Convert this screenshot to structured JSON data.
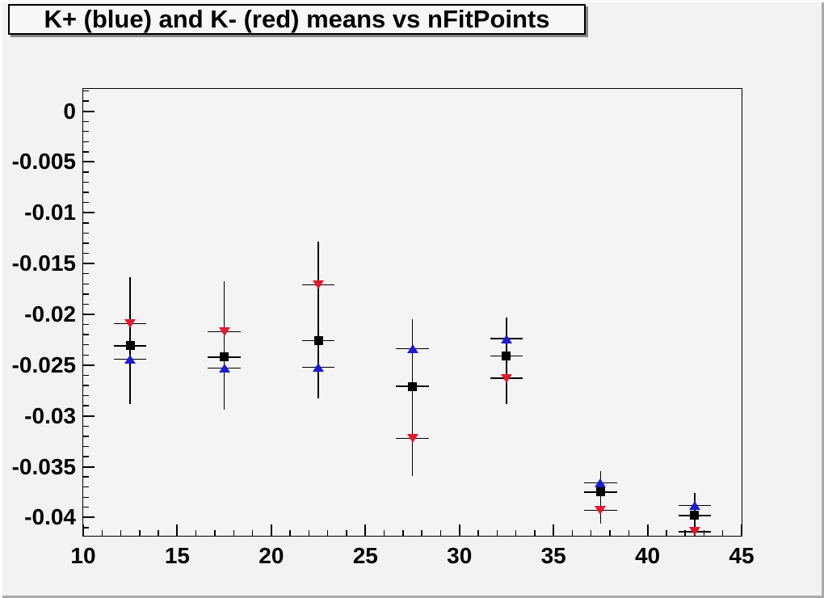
{
  "title": "K+ (blue) and K- (red) means vs nFitPoints",
  "colors": {
    "canvas_bg": "#f2f2f2",
    "frame_bg": "#f4f4f4",
    "kplus_blue": "#1c1cd0",
    "kminus_red": "#e01b2f",
    "mean_black": "#000000"
  },
  "chart_data": {
    "type": "scatter",
    "title": "K+ (blue) and K- (red) means vs nFitPoints",
    "xlabel": "",
    "ylabel": "",
    "xlim": [
      10,
      45
    ],
    "ylim": [
      -0.0418,
      0.0022
    ],
    "grid": false,
    "x_major_ticks": [
      10,
      15,
      20,
      25,
      30,
      35,
      40,
      45
    ],
    "x_tick_labels": [
      "10",
      "15",
      "20",
      "25",
      "30",
      "35",
      "40",
      "45"
    ],
    "x_minor_step": 1,
    "y_major_ticks": [
      0,
      -0.005,
      -0.01,
      -0.015,
      -0.02,
      -0.025,
      -0.03,
      -0.035,
      -0.04
    ],
    "y_tick_labels": [
      "0",
      "-0.005",
      "-0.01",
      "-0.015",
      "-0.02",
      "-0.025",
      "-0.03",
      "-0.035",
      "-0.04"
    ],
    "y_minor_step": 0.001,
    "x": [
      12.5,
      17.5,
      22.5,
      27.5,
      32.5,
      37.5,
      42.5
    ],
    "xerr": 0.87,
    "series": [
      {
        "name": "K+ mean (blue up-triangles)",
        "color": "#1c1cd0",
        "marker": "triangle-up",
        "values": [
          -0.0244,
          -0.0253,
          -0.0252,
          -0.0234,
          -0.0224,
          -0.0366,
          -0.0388
        ]
      },
      {
        "name": "K- mean (red down-triangles)",
        "color": "#e01b2f",
        "marker": "triangle-down",
        "values": [
          -0.0209,
          -0.0217,
          -0.0171,
          -0.0322,
          -0.0263,
          -0.0393,
          -0.0414
        ]
      },
      {
        "name": "combined mean (black squares)",
        "color": "#000000",
        "marker": "square",
        "values": [
          -0.0231,
          -0.0242,
          -0.0226,
          -0.0271,
          -0.0241,
          -0.0375,
          -0.0398
        ]
      }
    ],
    "error_bars": [
      {
        "x": 12.5,
        "low": -0.0288,
        "high": -0.0163
      },
      {
        "x": 17.5,
        "low": -0.0294,
        "high": -0.0167
      },
      {
        "x": 22.5,
        "low": -0.0283,
        "high": -0.0128
      },
      {
        "x": 27.5,
        "low": -0.0359,
        "high": -0.0205
      },
      {
        "x": 32.5,
        "low": -0.0288,
        "high": -0.0203
      },
      {
        "x": 37.5,
        "low": -0.0406,
        "high": -0.0354
      },
      {
        "x": 42.5,
        "low": -0.043,
        "high": -0.0376
      }
    ]
  }
}
